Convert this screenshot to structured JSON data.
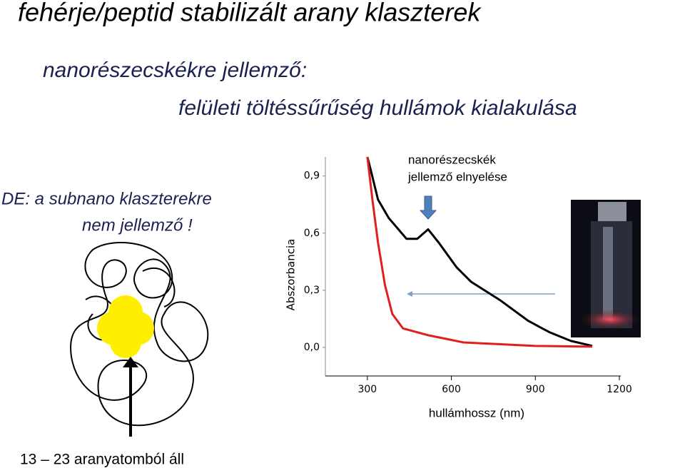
{
  "header": {
    "title": "fehérje/peptid stabilizált arany klaszterek",
    "subtitle_1": "nanorészecskékre jellemző:",
    "subtitle_2": "felületi töltéssűrűség hullámok kialakulása"
  },
  "note": {
    "line_1": "DE: a subnano klaszterekre",
    "line_2": "nem jellemző !"
  },
  "caption": "13 – 23 aranyatomból áll",
  "chart_data": {
    "type": "line",
    "ylabel": "Abszorbancia",
    "xlabel": "hullámhossz (nm)",
    "annotation": [
      "nanorészecskék",
      "jellemző elnyelése"
    ],
    "xlim": [
      150,
      1200
    ],
    "ylim": [
      -0.15,
      1.0
    ],
    "xticks": [
      300,
      600,
      900,
      1200
    ],
    "yticks": [
      {
        "value": 0,
        "label": "0,0"
      },
      {
        "value": 0.3,
        "label": "0,3"
      },
      {
        "value": 0.6,
        "label": "0,6"
      },
      {
        "value": 0.9,
        "label": "0,9"
      }
    ],
    "series": [
      {
        "color": "#000000",
        "x": [
          300,
          313,
          338,
          376,
          440,
          478,
          517,
          555,
          619,
          670,
          772,
          874,
          950,
          1027,
          1103
        ],
        "values": [
          1.0,
          0.926,
          0.776,
          0.68,
          0.57,
          0.57,
          0.62,
          0.55,
          0.42,
          0.345,
          0.25,
          0.14,
          0.08,
          0.034,
          0.008
        ]
      },
      {
        "color": "#e02020",
        "x": [
          300,
          318,
          338,
          363,
          389,
          427,
          517,
          644,
          899,
          1103
        ],
        "values": [
          1.0,
          0.776,
          0.55,
          0.326,
          0.176,
          0.1,
          0.064,
          0.026,
          0.008,
          0.004
        ]
      }
    ]
  }
}
